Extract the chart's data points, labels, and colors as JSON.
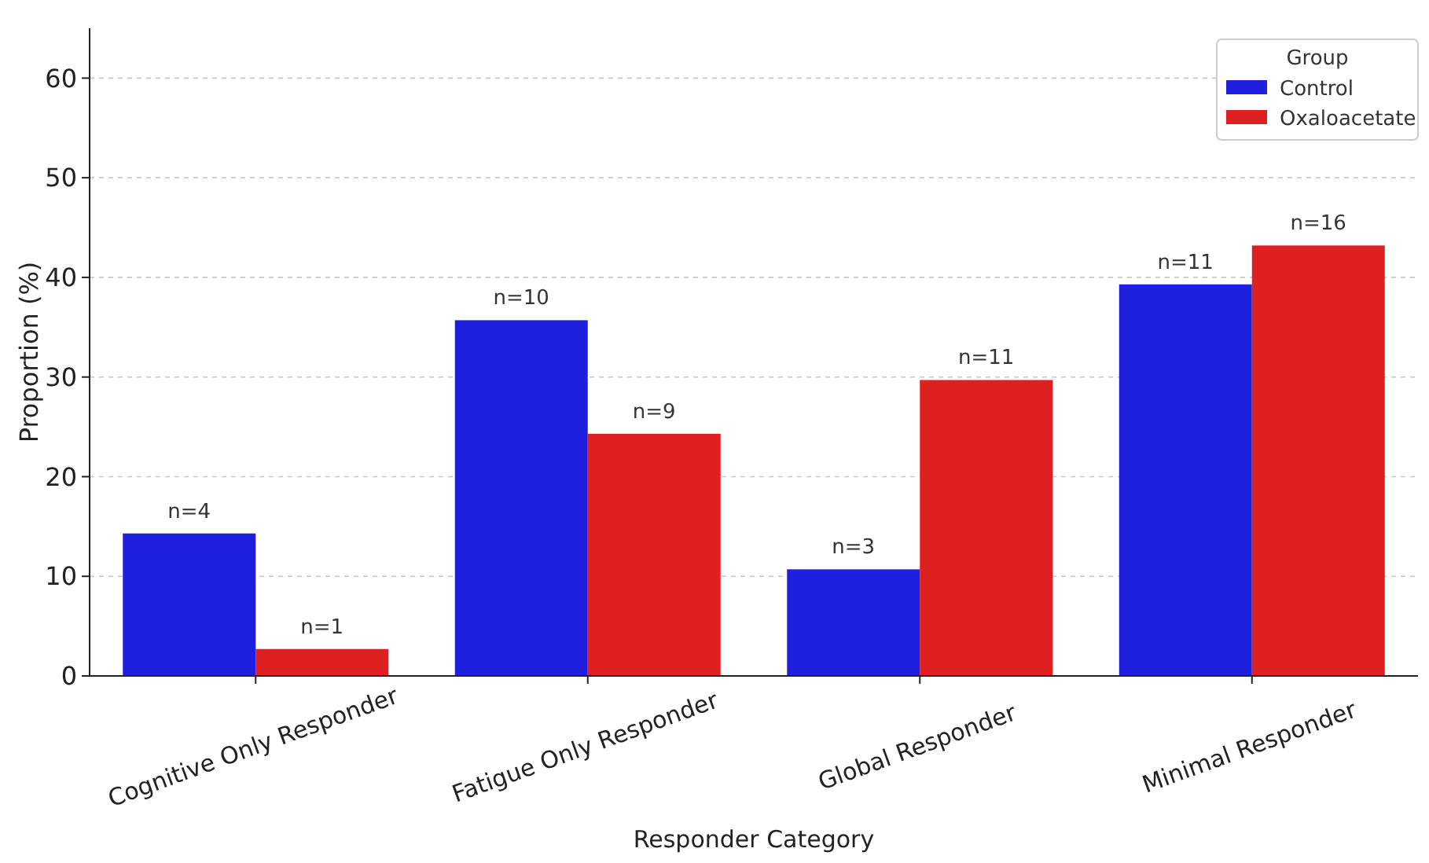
{
  "chart_data": {
    "type": "bar",
    "xlabel": "Responder Category",
    "ylabel": "Proportion (%)",
    "legend_title": "Group",
    "legend": "top right",
    "grid": "y",
    "categories": [
      "Cognitive Only Responder",
      "Fatigue Only Responder",
      "Global Responder",
      "Minimal Responder"
    ],
    "ylim": [
      0,
      65
    ],
    "yticks": [
      0,
      10,
      20,
      30,
      40,
      50,
      60
    ],
    "series": [
      {
        "name": "Control",
        "color": "#1f1fe0",
        "values": [
          14.3,
          35.7,
          10.7,
          39.3
        ]
      },
      {
        "name": "Oxaloacetate",
        "color": "#df2020",
        "values": [
          2.7,
          24.3,
          29.7,
          43.2
        ]
      }
    ],
    "annotations": [
      {
        "text": "n=4",
        "x": "Cognitive Only Responder",
        "y": 14.3
      },
      {
        "text": "n=1",
        "x": "Cognitive Only Responder",
        "y": 2.7
      },
      {
        "text": "n=10",
        "x": "Fatigue Only Responder",
        "y": 35.7
      },
      {
        "text": "n=9",
        "x": "Fatigue Only Responder",
        "y": 24.3
      },
      {
        "text": "n=3",
        "x": "Global Responder",
        "y": 10.7
      },
      {
        "text": "n=11",
        "x": "Global Responder",
        "y": 29.7
      },
      {
        "text": "n=11",
        "x": "Minimal Responder",
        "y": 39.3
      },
      {
        "text": "n=16",
        "x": "Minimal Responder",
        "y": 43.2
      }
    ]
  }
}
